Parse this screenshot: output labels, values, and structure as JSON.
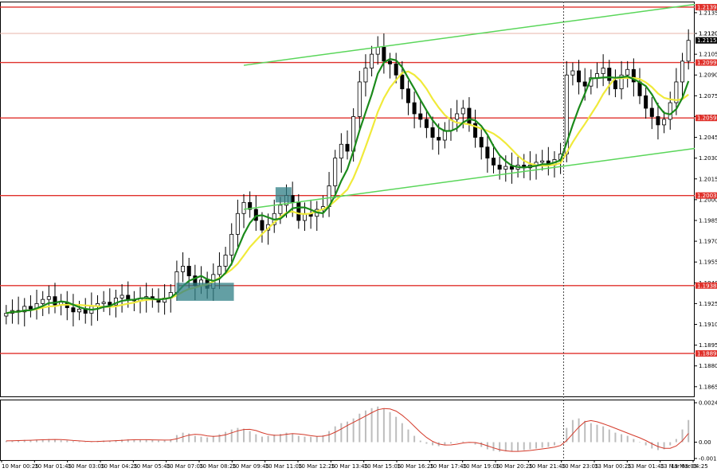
{
  "chart_data": [
    {
      "type": "candlestick",
      "instrument_price_ticks": [
        "1.2135",
        "1.2120",
        "1.2105",
        "1.2090",
        "1.2075",
        "1.2060",
        "1.2045",
        "1.2030",
        "1.2015",
        "1.2000",
        "1.1985",
        "1.1970",
        "1.1955",
        "1.1940",
        "1.1925",
        "1.1910",
        "1.1895",
        "1.1880",
        "1.1865"
      ],
      "ylim": [
        1.1858,
        1.2143
      ],
      "x_ticks": [
        "10 Mar 00:25",
        "10 Mar 01:45",
        "10 Mar 03:05",
        "10 Mar 04:25",
        "10 Mar 05:45",
        "10 Mar 07:05",
        "10 Mar 08:25",
        "10 Mar 09:45",
        "10 Mar 11:05",
        "10 Mar 12:25",
        "10 Mar 13:45",
        "10 Mar 15:05",
        "10 Mar 16:25",
        "10 Mar 17:45",
        "10 Mar 19:05",
        "10 Mar 20:25",
        "10 Mar 21:45",
        "10 Mar 23:05",
        "13 Mar 00:25",
        "13 Mar 01:45",
        "13 Mar 03:05",
        "13 Mar 04:25"
      ],
      "levels": [
        {
          "value": 1.2139,
          "label": "1.2139",
          "color": "#e0312b"
        },
        {
          "value": 1.2099,
          "label": "1.2099",
          "color": "#e0312b"
        },
        {
          "value": 1.2059,
          "label": "1.2059",
          "color": "#e0312b"
        },
        {
          "value": 1.2003,
          "label": "1.2003",
          "color": "#e0312b"
        },
        {
          "value": 1.1938,
          "label": "1.1938",
          "color": "#e0312b"
        },
        {
          "value": 1.1889,
          "label": "1.1889",
          "color": "#e0312b"
        }
      ],
      "current_price": {
        "value": 1.2115,
        "label": "1.2115",
        "aux_label": "1.2120"
      },
      "moving_averages": [
        {
          "color": "#1b8a1b"
        },
        {
          "color": "#f0ea3a"
        }
      ],
      "closes": [
        1.1918,
        1.192,
        1.1919,
        1.1923,
        1.1921,
        1.1925,
        1.1928,
        1.193,
        1.1924,
        1.1926,
        1.1922,
        1.1919,
        1.1921,
        1.1918,
        1.1923,
        1.1925,
        1.1926,
        1.1924,
        1.1929,
        1.1931,
        1.1928,
        1.1927,
        1.1929,
        1.193,
        1.1928,
        1.1926,
        1.1929,
        1.1933,
        1.1948,
        1.1952,
        1.1945,
        1.1938,
        1.1942,
        1.1936,
        1.1946,
        1.1952,
        1.196,
        1.1975,
        1.199,
        1.1998,
        1.1993,
        1.1985,
        1.1978,
        1.1982,
        1.199,
        1.1996,
        1.2003,
        1.1998,
        1.1985,
        1.199,
        1.1988,
        1.1993,
        1.1995,
        1.201,
        1.203,
        1.204,
        1.2035,
        1.206,
        1.2085,
        1.2095,
        1.2105,
        1.211,
        1.21,
        1.2098,
        1.209,
        1.208,
        1.207,
        1.2062,
        1.2058,
        1.2052,
        1.2045,
        1.2043,
        1.205,
        1.2058,
        1.2062,
        1.2066,
        1.2055,
        1.2045,
        1.2038,
        1.203,
        1.2025,
        1.2022,
        1.2024,
        1.2022,
        1.2025,
        1.2023,
        1.2025,
        1.2027,
        1.2028,
        1.2025,
        1.2029,
        1.2033,
        1.209,
        1.2093,
        1.2085,
        1.2082,
        1.2088,
        1.2091,
        1.2095,
        1.2086,
        1.208,
        1.209,
        1.2094,
        1.2085,
        1.2075,
        1.2066,
        1.206,
        1.2054,
        1.2058,
        1.207,
        1.2085,
        1.21,
        1.2115
      ]
    },
    {
      "type": "histogram",
      "y_ticks": [
        "0.00249",
        "0.00",
        "-0.00103"
      ],
      "ylim": [
        -0.00103,
        0.00249
      ],
      "bar_color": "#bdbdbd",
      "signal_color": "#d43a2a",
      "values": [
        8e-05,
        0.0001,
        0.00012,
        0.00014,
        0.00012,
        0.00016,
        0.00018,
        0.0002,
        0.00015,
        0.00012,
        0.0001,
        6e-05,
        4e-05,
        2e-05,
        5e-05,
        8e-05,
        0.0001,
        8e-05,
        0.00012,
        0.00016,
        0.00018,
        0.00015,
        0.00014,
        0.00016,
        0.00014,
        0.0001,
        0.00012,
        0.00018,
        0.00045,
        0.0006,
        0.00055,
        0.0004,
        0.00035,
        0.0003,
        0.0004,
        0.0005,
        0.00065,
        0.0008,
        0.0009,
        0.00085,
        0.0007,
        0.0005,
        0.00035,
        0.0004,
        0.00048,
        0.00052,
        0.0006,
        0.00055,
        0.0004,
        0.00035,
        0.00034,
        0.00038,
        0.00044,
        0.0007,
        0.001,
        0.0012,
        0.0013,
        0.0015,
        0.0018,
        0.002,
        0.00215,
        0.00225,
        0.0021,
        0.0019,
        0.0016,
        0.0012,
        0.0008,
        0.0004,
        0.0001,
        -0.0001,
        -0.0002,
        -0.00025,
        -0.00018,
        -8e-05,
        2e-05,
        5e-05,
        -2e-05,
        -0.00015,
        -0.0003,
        -0.00045,
        -0.00055,
        -0.0006,
        -0.00058,
        -0.0006,
        -0.00055,
        -0.0005,
        -0.00045,
        -0.0004,
        -0.00035,
        -0.0003,
        -0.0002,
        0.0,
        0.0009,
        0.0014,
        0.0015,
        0.00135,
        0.0012,
        0.0011,
        0.001,
        0.0008,
        0.0006,
        0.0005,
        0.0004,
        0.0002,
        0.0,
        -0.0002,
        -0.0004,
        -0.0005,
        -0.00045,
        -0.0002,
        0.0002,
        0.0008,
        0.0014
      ]
    }
  ]
}
